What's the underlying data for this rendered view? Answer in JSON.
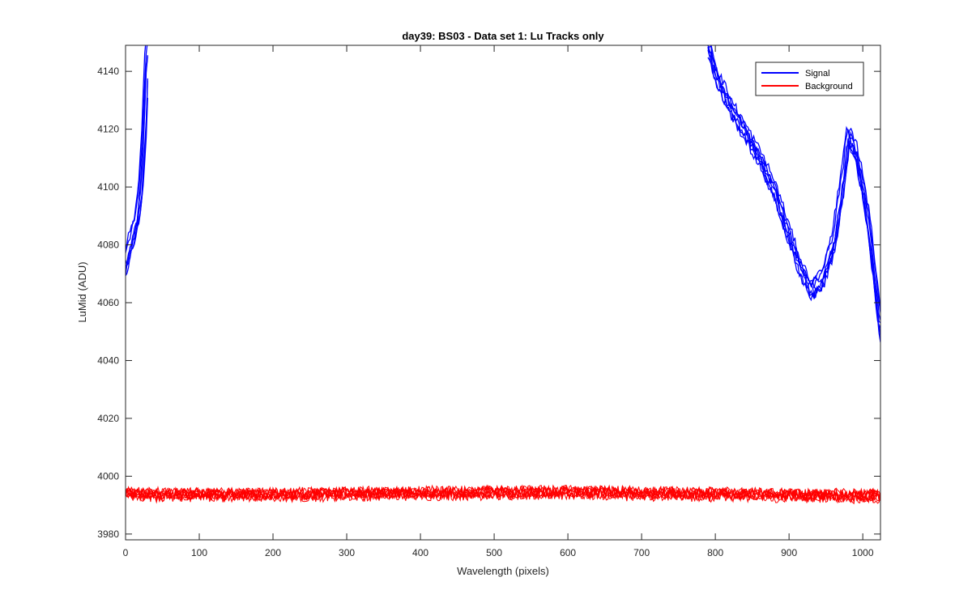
{
  "chart_data": {
    "type": "line",
    "title": "day39: BS03 - Data set 1: Lu Tracks only",
    "xlabel": "Wavelength (pixels)",
    "ylabel": "LuMid (ADU)",
    "xlim": [
      0,
      1024
    ],
    "ylim": [
      3978,
      4149
    ],
    "xticks": [
      0,
      100,
      200,
      300,
      400,
      500,
      600,
      700,
      800,
      900,
      1000
    ],
    "yticks": [
      3980,
      4000,
      4020,
      4040,
      4060,
      4080,
      4100,
      4120,
      4140
    ],
    "grid": false,
    "legend": "top-right",
    "series": [
      {
        "name": "Signal",
        "color": "#0000ff",
        "x": [
          0,
          5,
          10,
          15,
          20,
          25,
          28,
          31,
          790,
          800,
          820,
          840,
          860,
          880,
          900,
          915,
          930,
          945,
          960,
          975,
          980,
          990,
          1000,
          1010,
          1024
        ],
        "y": [
          4072,
          4079,
          4083,
          4088,
          4098,
          4118,
          4140,
          4149,
          4149,
          4139,
          4128,
          4119,
          4110,
          4099,
          4083,
          4072,
          4064,
          4068,
          4080,
          4105,
          4118,
          4112,
          4100,
          4082,
          4050
        ]
      },
      {
        "name": "Background",
        "color": "#ff0000",
        "x": [
          0,
          100,
          200,
          300,
          400,
          500,
          600,
          700,
          800,
          900,
          1000,
          1024
        ],
        "y": [
          3993.8,
          3993.5,
          3993.6,
          3993.9,
          3994.1,
          3994.3,
          3994.4,
          3994.0,
          3993.7,
          3993.5,
          3993.2,
          3993.1
        ]
      }
    ]
  }
}
